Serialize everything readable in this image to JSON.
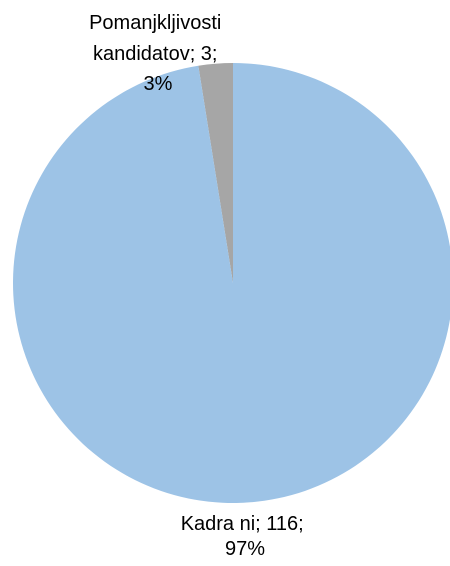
{
  "chart_data": {
    "type": "pie",
    "title": "",
    "slices": [
      {
        "label": "Kadra ni",
        "value": 116,
        "percent": "97%",
        "color": "#9DC3E6",
        "data_label_lines": [
          "Kadra ni; 116;",
          "97%"
        ]
      },
      {
        "label": "Pomanjkljivosti kandidatov",
        "value": 3,
        "percent": "3%",
        "color": "#A6A6A6",
        "data_label_lines": [
          "Pomanjkljivosti",
          "kandidatov; 3;",
          "3%"
        ]
      }
    ],
    "legend": "none",
    "start_angle": "12 o'clock, counter-clockwise"
  }
}
